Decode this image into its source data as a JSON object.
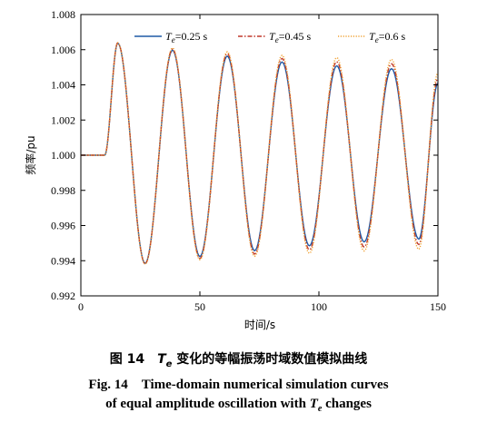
{
  "chart_data": {
    "type": "line",
    "xlabel": "时间/s",
    "ylabel": "频率/pu",
    "xlim": [
      0,
      150
    ],
    "ylim": [
      0.992,
      1.008
    ],
    "xticks": [
      "0",
      "50",
      "100",
      "150"
    ],
    "yticks": [
      "0.992",
      "0.994",
      "0.996",
      "0.998",
      "1.000",
      "1.002",
      "1.004",
      "1.006",
      "1.008"
    ],
    "grid": false,
    "legend_placement": "top-right",
    "series": [
      {
        "name_var": "T",
        "name_sub": "e",
        "name_suffix": "=0.25 s",
        "color": "#1f5aa6",
        "style": "solid",
        "points": [
          [
            0,
            1.0
          ],
          [
            10,
            1.0
          ],
          [
            15.5,
            1.00637
          ],
          [
            27,
            0.99385
          ],
          [
            38.5,
            1.00597
          ],
          [
            50,
            0.99424
          ],
          [
            61.5,
            1.00563
          ],
          [
            73,
            0.99457
          ],
          [
            84.5,
            1.0053
          ],
          [
            96,
            0.99485
          ],
          [
            107.5,
            1.00508
          ],
          [
            119,
            0.99507
          ],
          [
            130.5,
            1.00492
          ],
          [
            142,
            0.99523
          ],
          [
            150,
            1.0041
          ]
        ]
      },
      {
        "name_var": "T",
        "name_sub": "e",
        "name_suffix": "=0.45 s",
        "color": "#c0392b",
        "style": "dashdot",
        "points": [
          [
            0,
            1.0
          ],
          [
            10,
            1.0
          ],
          [
            15.5,
            1.00639
          ],
          [
            27,
            0.99382
          ],
          [
            38.5,
            1.00604
          ],
          [
            50,
            0.99412
          ],
          [
            61.5,
            1.00578
          ],
          [
            73,
            0.99438
          ],
          [
            84.5,
            1.0055
          ],
          [
            96,
            0.99462
          ],
          [
            107.5,
            1.00532
          ],
          [
            119,
            0.99478
          ],
          [
            130.5,
            1.0052
          ],
          [
            142,
            0.99492
          ],
          [
            150,
            1.0044
          ]
        ]
      },
      {
        "name_var": "T",
        "name_sub": "e",
        "name_suffix": "=0.6 s",
        "color": "#f0a030",
        "style": "dotted",
        "points": [
          [
            0,
            1.0
          ],
          [
            10,
            1.0
          ],
          [
            15.5,
            1.0064
          ],
          [
            27,
            0.9938
          ],
          [
            38.5,
            1.0061
          ],
          [
            50,
            0.99405
          ],
          [
            61.5,
            1.00588
          ],
          [
            73,
            0.99425
          ],
          [
            84.5,
            1.00568
          ],
          [
            96,
            0.99442
          ],
          [
            107.5,
            1.00555
          ],
          [
            119,
            0.99455
          ],
          [
            130.5,
            1.00545
          ],
          [
            142,
            0.99465
          ],
          [
            150,
            1.0047
          ]
        ]
      }
    ]
  },
  "caption": {
    "cn_prefix": "图 14",
    "cn_var": "T",
    "cn_sub": "e",
    "cn_rest": " 变化的等幅振荡时域数值模拟曲线",
    "en_line1": "Fig. 14　Time-domain numerical simulation curves",
    "en_line2_prefix": "of equal amplitude oscillation with ",
    "en_var": "T",
    "en_sub": "e",
    "en_line2_suffix": " changes"
  }
}
